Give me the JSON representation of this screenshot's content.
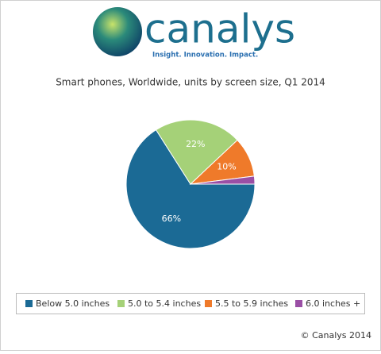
{
  "brand": {
    "name": "canalys",
    "tagline": "Insight. Innovation. Impact."
  },
  "chart_data": {
    "type": "pie",
    "title": "Smart phones, Worldwide, units by screen size, Q1 2014",
    "categories": [
      "Below 5.0 inches",
      "5.0 to 5.4 inches",
      "5.5 to 5.9 inches",
      "6.0 inches +"
    ],
    "values": [
      66,
      22,
      10,
      2
    ],
    "value_labels": [
      "66%",
      "22%",
      "10%",
      null
    ],
    "colors": [
      "#1b6a95",
      "#a5d178",
      "#ef7a2a",
      "#9a4fa5"
    ],
    "legend": "bottom"
  },
  "footer": "© Canalys 2014"
}
